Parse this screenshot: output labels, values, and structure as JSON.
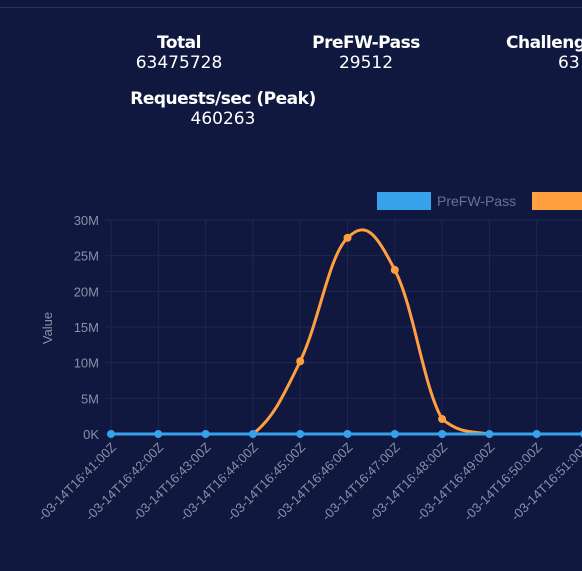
{
  "stats": {
    "total": {
      "label": "Total",
      "value": "63475728"
    },
    "prefw_pass": {
      "label": "PreFW-Pass",
      "value": "29512"
    },
    "challenge": {
      "label": "Challeng",
      "value": "63"
    },
    "requests_peak": {
      "label": "Requests/sec (Peak)",
      "value": "460263"
    }
  },
  "colors": {
    "background": "#101840",
    "prefw_pass": "#36a2eb",
    "challenge": "#ff9f40",
    "grid": "#1e2750",
    "text": "#8a8fa8"
  },
  "chart_data": {
    "type": "line",
    "ylabel": "Value",
    "xlabel": "",
    "ylim": [
      0,
      30000000
    ],
    "y_ticks": [
      "0K",
      "5M",
      "10M",
      "15M",
      "20M",
      "25M",
      "30M"
    ],
    "categories": [
      "-03-14T16:41:00Z",
      "-03-14T16:42:00Z",
      "-03-14T16:43:00Z",
      "-03-14T16:44:00Z",
      "-03-14T16:45:00Z",
      "-03-14T16:46:00Z",
      "-03-14T16:47:00Z",
      "-03-14T16:48:00Z",
      "-03-14T16:49:00Z",
      "-03-14T16:50:00Z",
      "-03-14T16:51:00Z"
    ],
    "legend": [
      "PreFW-Pass",
      ""
    ],
    "legend_position": "top",
    "series": [
      {
        "name": "PreFW-Pass",
        "color": "#36a2eb",
        "values": [
          0,
          0,
          0,
          0,
          0,
          0,
          0,
          0,
          0,
          0,
          0
        ]
      },
      {
        "name": "",
        "color": "#ff9f40",
        "values": [
          0,
          0,
          0,
          0,
          10200000,
          27500000,
          23000000,
          2100000,
          0,
          0,
          0
        ]
      }
    ]
  }
}
